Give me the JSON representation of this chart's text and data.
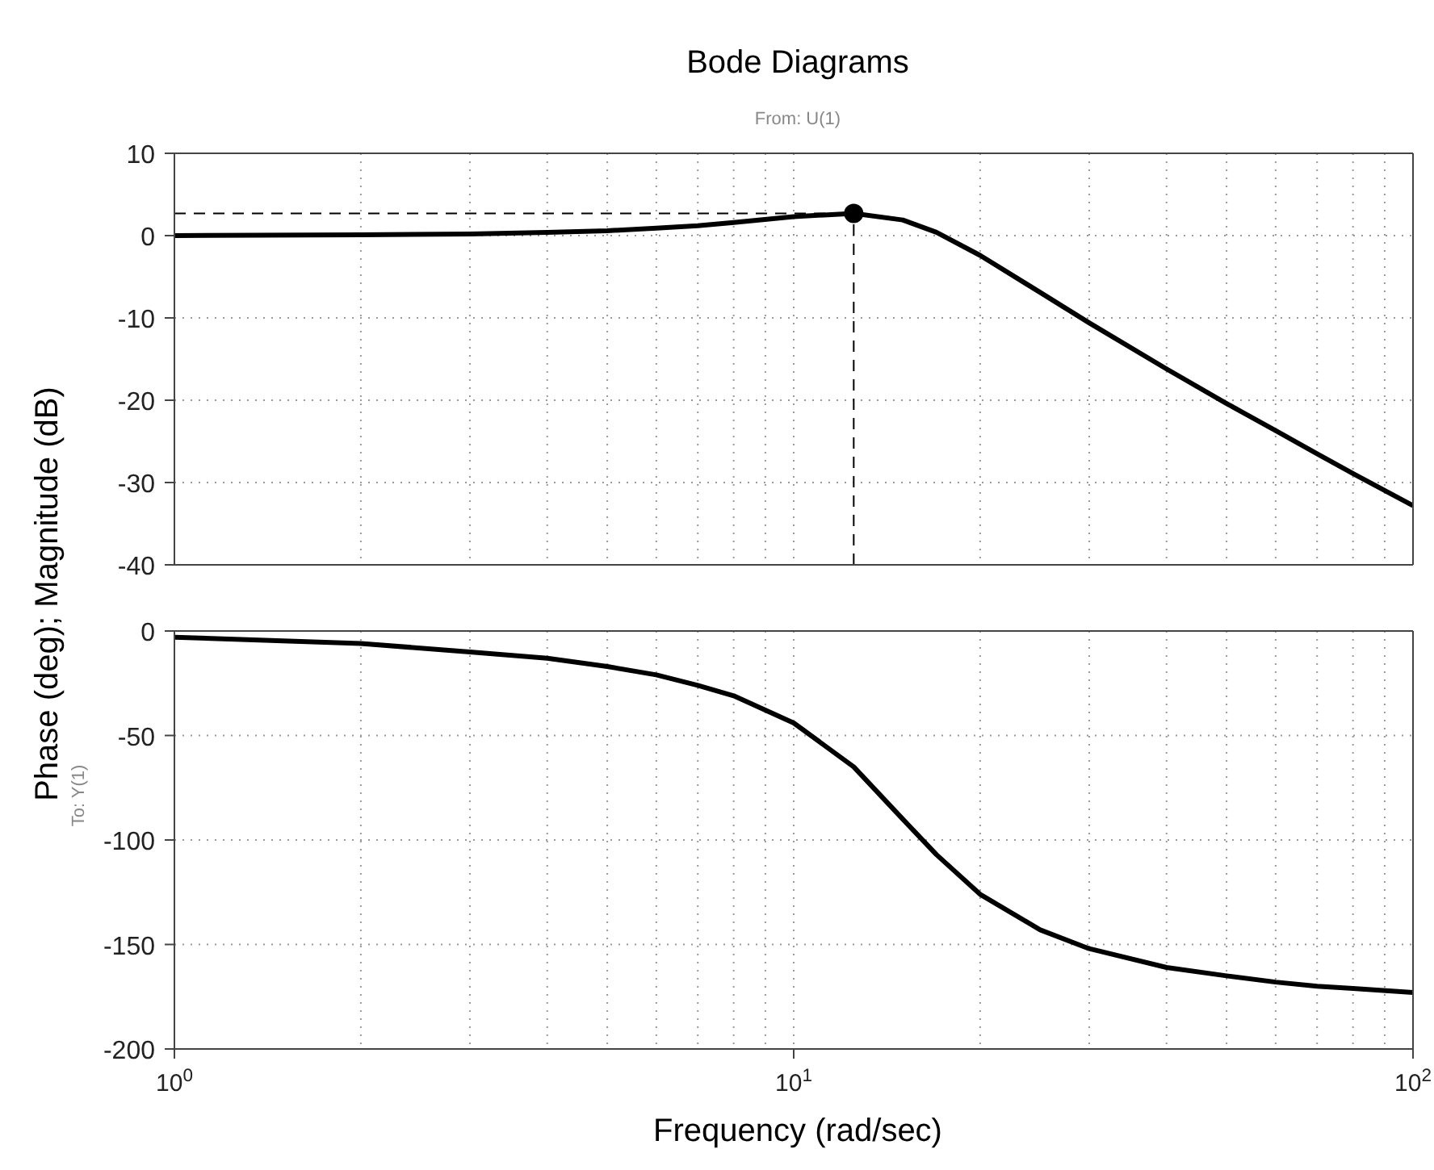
{
  "chart_data": [
    {
      "type": "line",
      "title": "Bode Diagrams",
      "ylabel": "Phase (deg); Magnitude (dB)",
      "annotations": [
        "From: U(1)"
      ],
      "log": "x",
      "grid": true,
      "tick_labels": "y",
      "xlim": [
        1,
        100
      ],
      "ylim": [
        -40,
        10
      ],
      "yticks": [
        -40,
        -30,
        -20,
        -10,
        0,
        10
      ],
      "series": [
        {
          "type": "line",
          "color": "#000000",
          "x": [
            1,
            2,
            3,
            4,
            5,
            6,
            7,
            8,
            10,
            12.5,
            15,
            17,
            20,
            25,
            30,
            40,
            50,
            60,
            70,
            80,
            100
          ],
          "values": [
            0,
            0.1,
            0.2,
            0.4,
            0.6,
            0.9,
            1.2,
            1.6,
            2.3,
            2.7,
            1.9,
            0.4,
            -2.4,
            -6.9,
            -10.6,
            -16.2,
            -20.4,
            -23.7,
            -26.5,
            -28.9,
            -32.8
          ]
        },
        {
          "type": "scatter",
          "color": "#000000",
          "marker": "circle",
          "x": [
            12.5
          ],
          "values": [
            2.7
          ]
        }
      ],
      "ref_lines": [
        {
          "axis": "y",
          "value": 2.7,
          "color": "#000000",
          "line_style": "dashed"
        },
        {
          "axis": "x",
          "value": 12.5,
          "color": "#000000",
          "line_style": "dashed"
        }
      ]
    },
    {
      "type": "line",
      "xlabel": "Frequency (rad/sec)",
      "annotations": [
        "To: Y(1)"
      ],
      "log": "x",
      "grid": true,
      "xlim": [
        1,
        100
      ],
      "xticks": [
        {
          "value": 1,
          "label": "10$^{0}$"
        },
        {
          "value": 10,
          "label": "10$^{1}$"
        },
        {
          "value": 100,
          "label": "10$^{2}$"
        }
      ],
      "ylim": [
        -200,
        0
      ],
      "yticks": [
        -200,
        -150,
        -100,
        -50,
        0
      ],
      "series": [
        {
          "type": "line",
          "color": "#000000",
          "x": [
            1,
            2,
            3,
            4,
            5,
            6,
            7,
            8,
            10,
            12.5,
            15,
            17,
            20,
            25,
            30,
            40,
            50,
            60,
            70,
            80,
            100
          ],
          "values": [
            -3,
            -6,
            -10,
            -13,
            -17,
            -21,
            -26,
            -31,
            -44,
            -65,
            -90,
            -107,
            -126,
            -143,
            -152,
            -161,
            -165,
            -168,
            -170,
            -171,
            -173
          ]
        }
      ]
    }
  ]
}
